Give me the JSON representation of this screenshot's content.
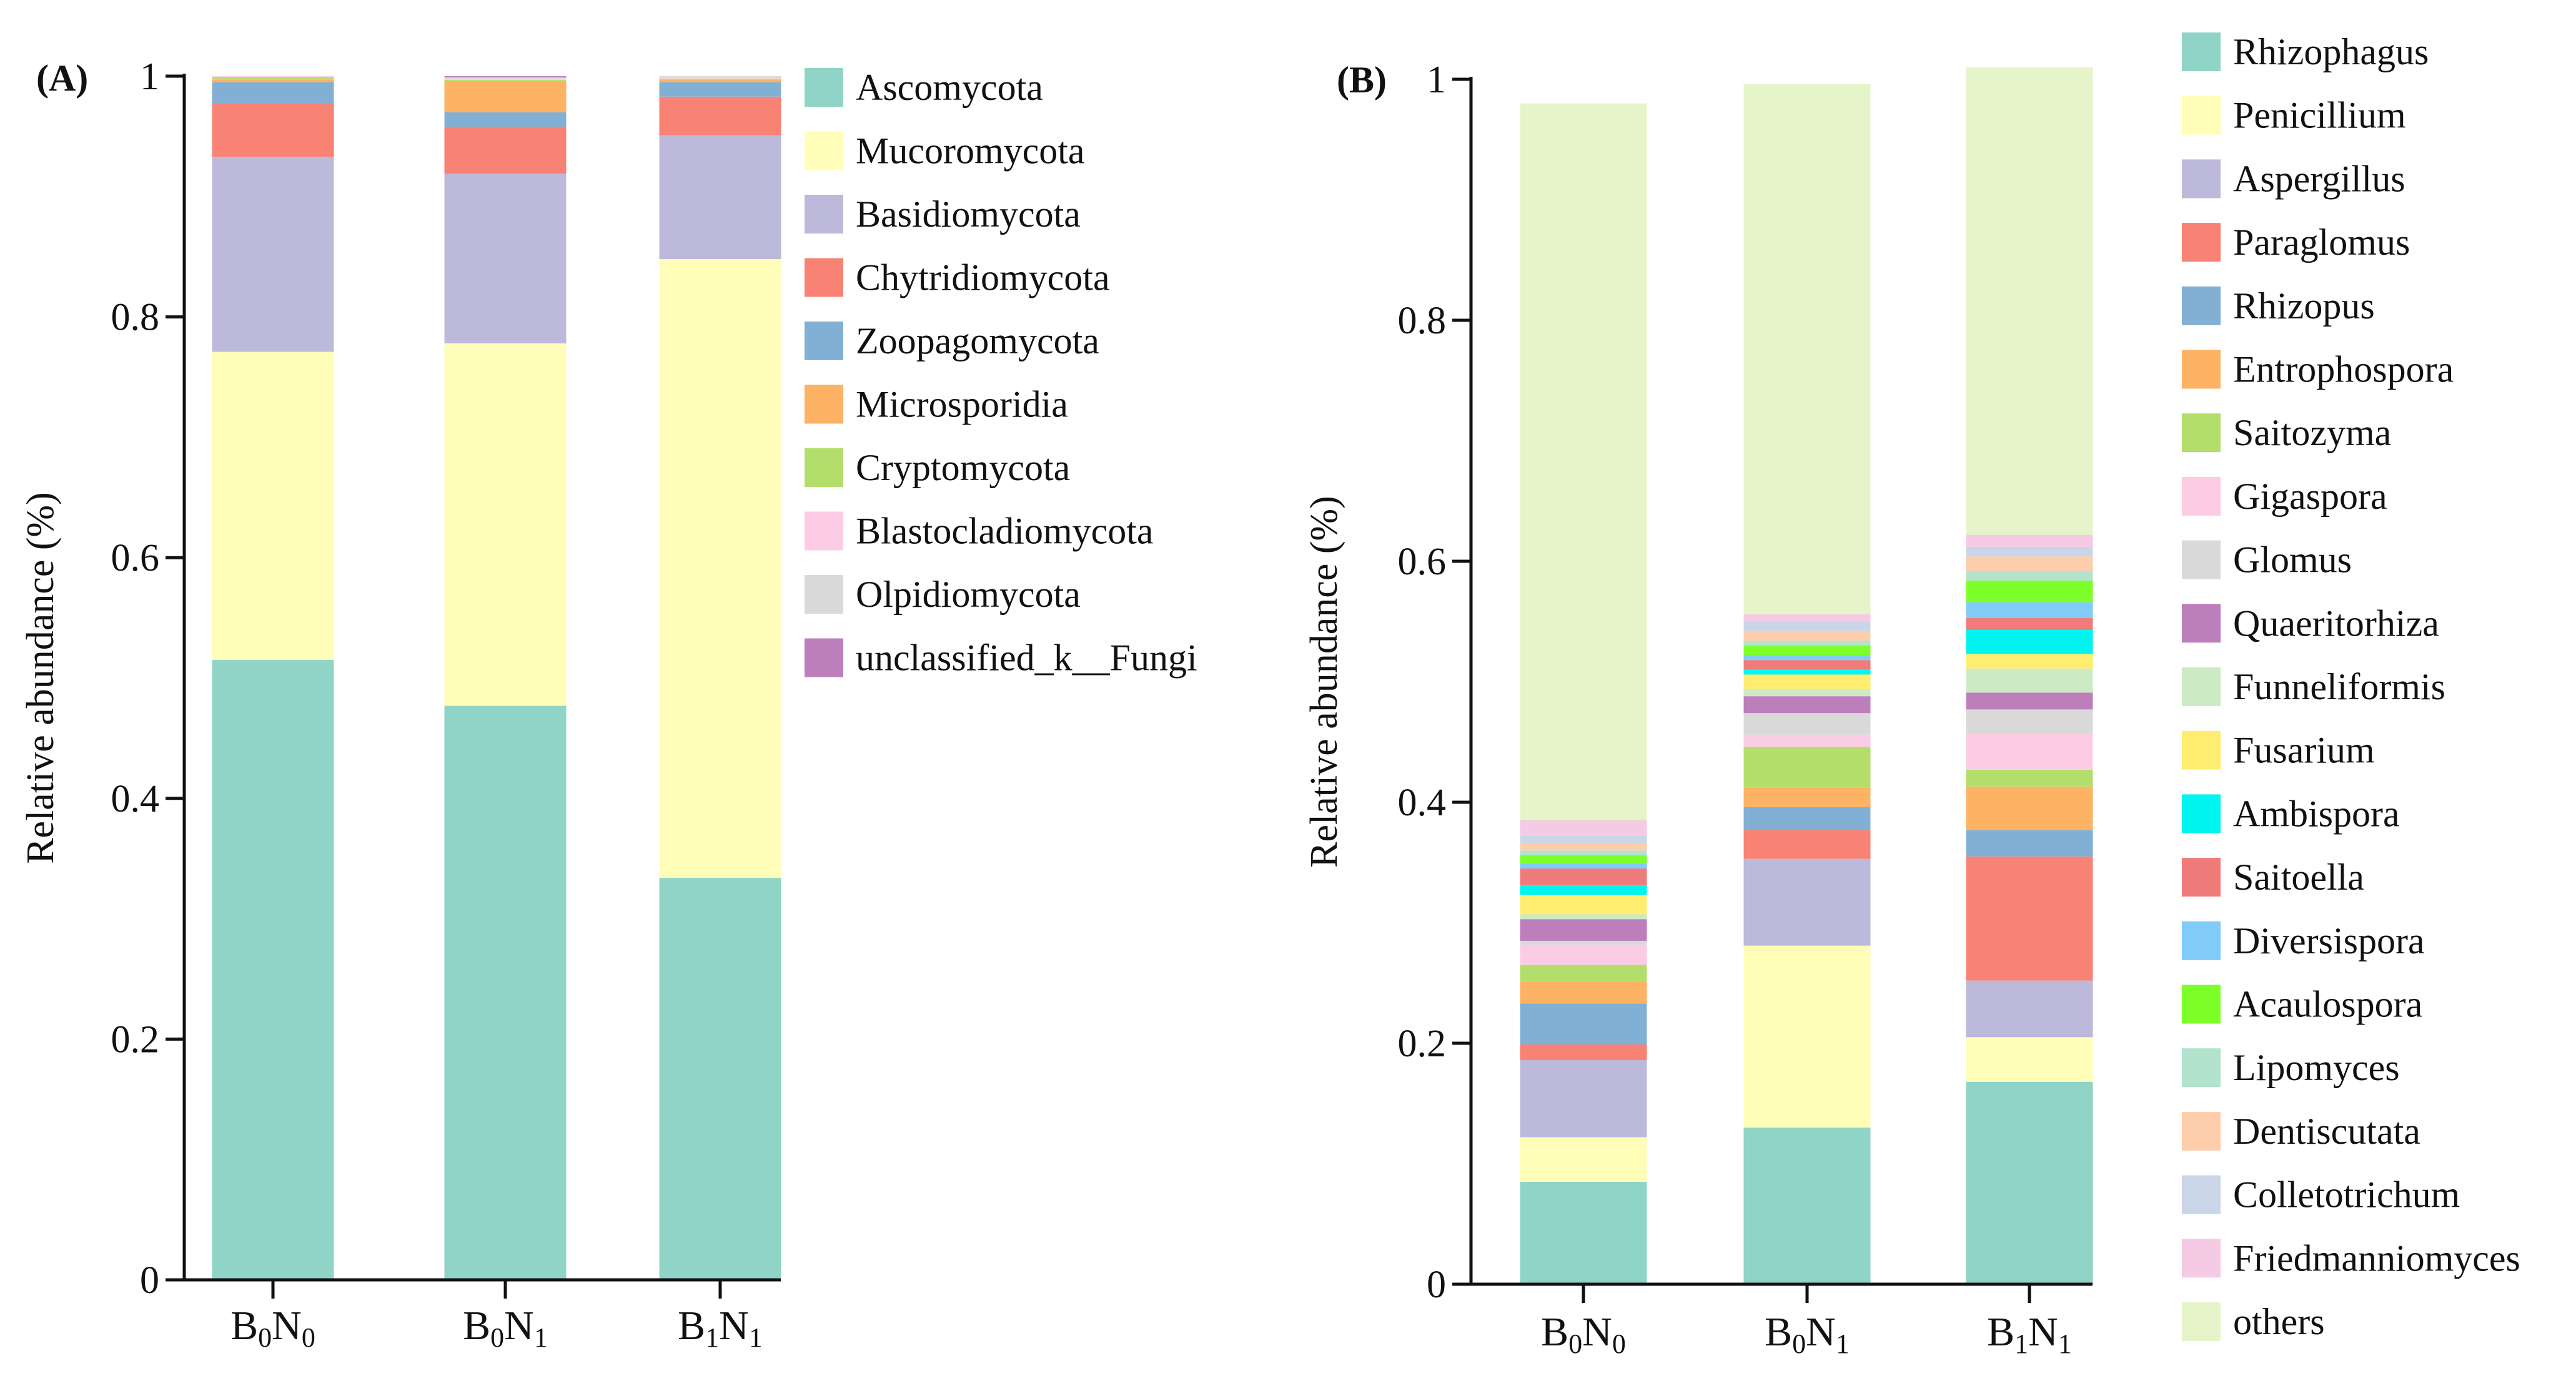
{
  "chart_data": [
    {
      "type": "bar",
      "stacked": true,
      "panel_label": "(A)",
      "ylabel": "Relative abundance (%)",
      "ylim": [
        0,
        1
      ],
      "yticks": [
        "0",
        "0.2",
        "0.4",
        "0.6",
        "0.8",
        "1"
      ],
      "categories": [
        {
          "base1": "B",
          "sub1": "0",
          "base2": "N",
          "sub2": "0"
        },
        {
          "base1": "B",
          "sub1": "0",
          "base2": "N",
          "sub2": "1"
        },
        {
          "base1": "B",
          "sub1": "1",
          "base2": "N",
          "sub2": "1"
        }
      ],
      "legend_position": "right",
      "series": [
        {
          "name": "Ascomycota",
          "color": "#8fd4c6",
          "values": [
            0.515,
            0.477,
            0.334
          ]
        },
        {
          "name": "Mucoromycota",
          "color": "#fffdb8",
          "values": [
            0.256,
            0.301,
            0.514
          ]
        },
        {
          "name": "Basidiomycota",
          "color": "#bdb9da",
          "values": [
            0.162,
            0.141,
            0.103
          ]
        },
        {
          "name": "Chytridiomycota",
          "color": "#f88274",
          "values": [
            0.044,
            0.039,
            0.032
          ]
        },
        {
          "name": "Zoopagomycota",
          "color": "#82b0d4",
          "values": [
            0.018,
            0.012,
            0.012
          ]
        },
        {
          "name": "Microsporidia",
          "color": "#fdb264",
          "values": [
            0.002,
            0.026,
            0.002
          ]
        },
        {
          "name": "Cryptomycota",
          "color": "#b4de6c",
          "values": [
            0.002,
            0.001,
            0.001
          ]
        },
        {
          "name": "Blastocladiomycota",
          "color": "#fccce5",
          "values": [
            0.001,
            0.001,
            0.001
          ]
        },
        {
          "name": "Olpidiomycota",
          "color": "#d9d9d9",
          "values": [
            0.0,
            0.001,
            0.001
          ]
        },
        {
          "name": "unclassified_k__Fungi",
          "color": "#bc7fbc",
          "values": [
            0.0,
            0.001,
            0.0
          ]
        }
      ]
    },
    {
      "type": "bar",
      "stacked": true,
      "panel_label": "(B)",
      "ylabel": "Relative abundance (%)",
      "ylim": [
        0,
        1
      ],
      "yticks": [
        "0",
        "0.2",
        "0.4",
        "0.6",
        "0.8",
        "1"
      ],
      "categories": [
        {
          "base1": "B",
          "sub1": "0",
          "base2": "N",
          "sub2": "0"
        },
        {
          "base1": "B",
          "sub1": "0",
          "base2": "N",
          "sub2": "1"
        },
        {
          "base1": "B",
          "sub1": "1",
          "base2": "N",
          "sub2": "1"
        }
      ],
      "legend_position": "right",
      "series": [
        {
          "name": "Rhizophagus",
          "color": "#8fd4c6",
          "values": [
            0.085,
            0.13,
            0.168
          ]
        },
        {
          "name": "Penicillium",
          "color": "#fffdb8",
          "values": [
            0.037,
            0.151,
            0.037
          ]
        },
        {
          "name": "Aspergillus",
          "color": "#bdb9da",
          "values": [
            0.064,
            0.072,
            0.047
          ]
        },
        {
          "name": "Paraglomus",
          "color": "#f88274",
          "values": [
            0.013,
            0.024,
            0.103
          ]
        },
        {
          "name": "Rhizopus",
          "color": "#82b0d4",
          "values": [
            0.034,
            0.019,
            0.022
          ]
        },
        {
          "name": "Entrophospora",
          "color": "#fdb264",
          "values": [
            0.018,
            0.016,
            0.036
          ]
        },
        {
          "name": "Saitozyma",
          "color": "#b4de6c",
          "values": [
            0.014,
            0.034,
            0.014
          ]
        },
        {
          "name": "Gigaspora",
          "color": "#fccce5",
          "values": [
            0.016,
            0.01,
            0.03
          ]
        },
        {
          "name": "Glomus",
          "color": "#d9d9d9",
          "values": [
            0.004,
            0.018,
            0.02
          ]
        },
        {
          "name": "Quaeritorhiza",
          "color": "#bc7fbc",
          "values": [
            0.018,
            0.014,
            0.014
          ]
        },
        {
          "name": "Funneliformis",
          "color": "#ccebc5",
          "values": [
            0.004,
            0.006,
            0.02
          ]
        },
        {
          "name": "Fusarium",
          "color": "#ffed6f",
          "values": [
            0.016,
            0.012,
            0.012
          ]
        },
        {
          "name": "Ambispora",
          "color": "#00f5f0",
          "values": [
            0.008,
            0.004,
            0.02
          ]
        },
        {
          "name": "Saitoella",
          "color": "#ef7b7b",
          "values": [
            0.014,
            0.008,
            0.01
          ]
        },
        {
          "name": "Diversispora",
          "color": "#80cbf7",
          "values": [
            0.004,
            0.004,
            0.013
          ]
        },
        {
          "name": "Acaulospora",
          "color": "#7dff2a",
          "values": [
            0.007,
            0.008,
            0.018
          ]
        },
        {
          "name": "Lipomyces",
          "color": "#b3e2cd",
          "values": [
            0.004,
            0.004,
            0.008
          ]
        },
        {
          "name": "Dentiscutata",
          "color": "#fdcdac",
          "values": [
            0.006,
            0.008,
            0.012
          ]
        },
        {
          "name": "Colletotrichum",
          "color": "#cbd5e8",
          "values": [
            0.006,
            0.008,
            0.008
          ]
        },
        {
          "name": "Friedmanniomyces",
          "color": "#f4cae4",
          "values": [
            0.013,
            0.006,
            0.01
          ]
        },
        {
          "name": "others",
          "color": "#e6f5c9",
          "values": [
            0.595,
            0.44,
            0.388
          ]
        }
      ]
    }
  ]
}
